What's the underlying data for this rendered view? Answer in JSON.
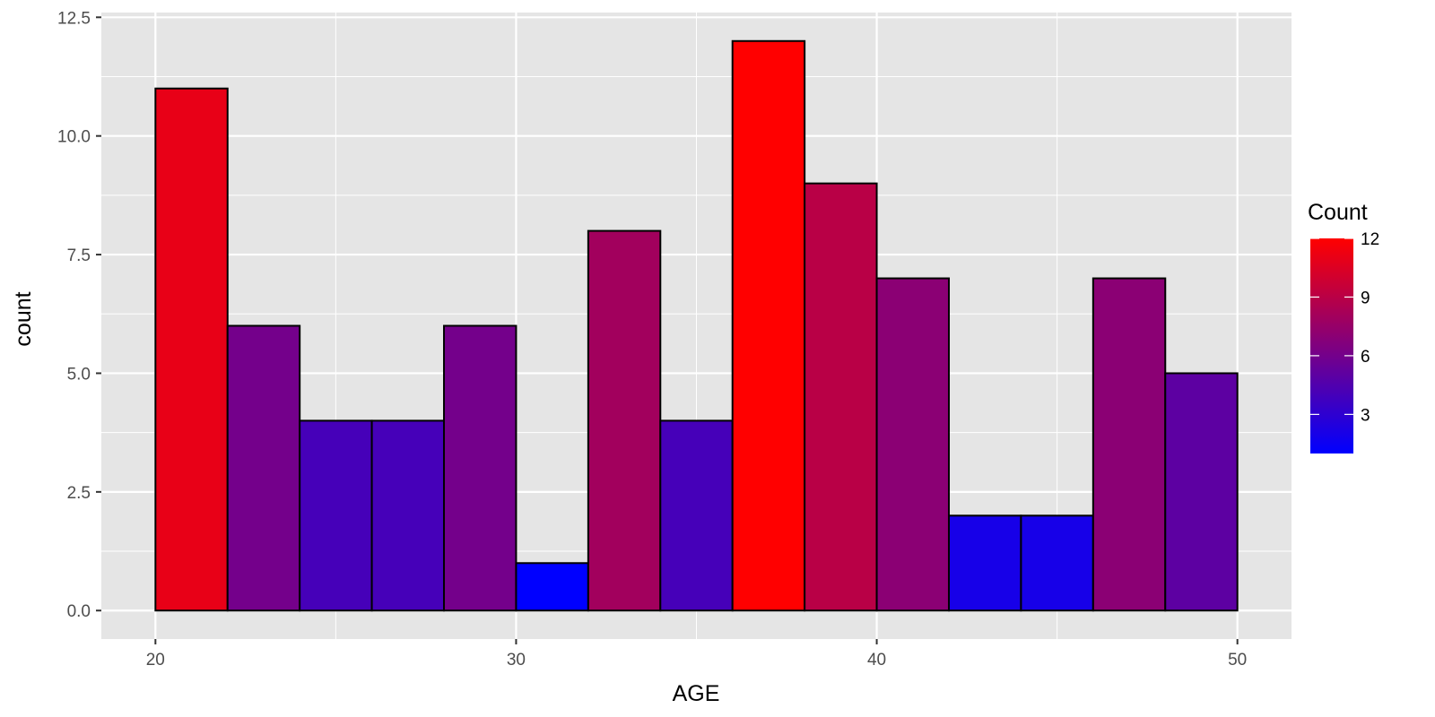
{
  "chart_data": {
    "type": "bar",
    "subtype": "histogram",
    "x": [
      21,
      23,
      25,
      27,
      29,
      31,
      33,
      35,
      37,
      39,
      41,
      43,
      45,
      47,
      49
    ],
    "bin_width": 2,
    "values": [
      11,
      6,
      4,
      4,
      6,
      1,
      8,
      4,
      12,
      9,
      7,
      2,
      2,
      7,
      5
    ],
    "xlabel": "AGE",
    "ylabel": "count",
    "xlim": [
      18.5,
      51.5
    ],
    "ylim": [
      -0.6,
      12.6
    ],
    "x_ticks": [
      20,
      30,
      40,
      50
    ],
    "x_tick_labels": [
      "20",
      "30",
      "40",
      "50"
    ],
    "y_ticks": [
      0,
      2.5,
      5,
      7.5,
      10,
      12.5
    ],
    "y_tick_labels": [
      "0.0",
      "2.5",
      "5.0",
      "7.5",
      "10.0",
      "12.5"
    ],
    "grid": true,
    "legend": {
      "title": "Count",
      "position": "right",
      "type": "colorbar",
      "low_color": "#0000FF",
      "high_color": "#FF0000",
      "range": [
        1,
        12
      ],
      "breaks": [
        3,
        6,
        9,
        12
      ],
      "labels": [
        "3",
        "6",
        "9",
        "12"
      ]
    },
    "colors": {
      "panel_background": "#E5E5E5",
      "grid_line": "#FFFFFF",
      "bar_outline": "#000000"
    }
  }
}
